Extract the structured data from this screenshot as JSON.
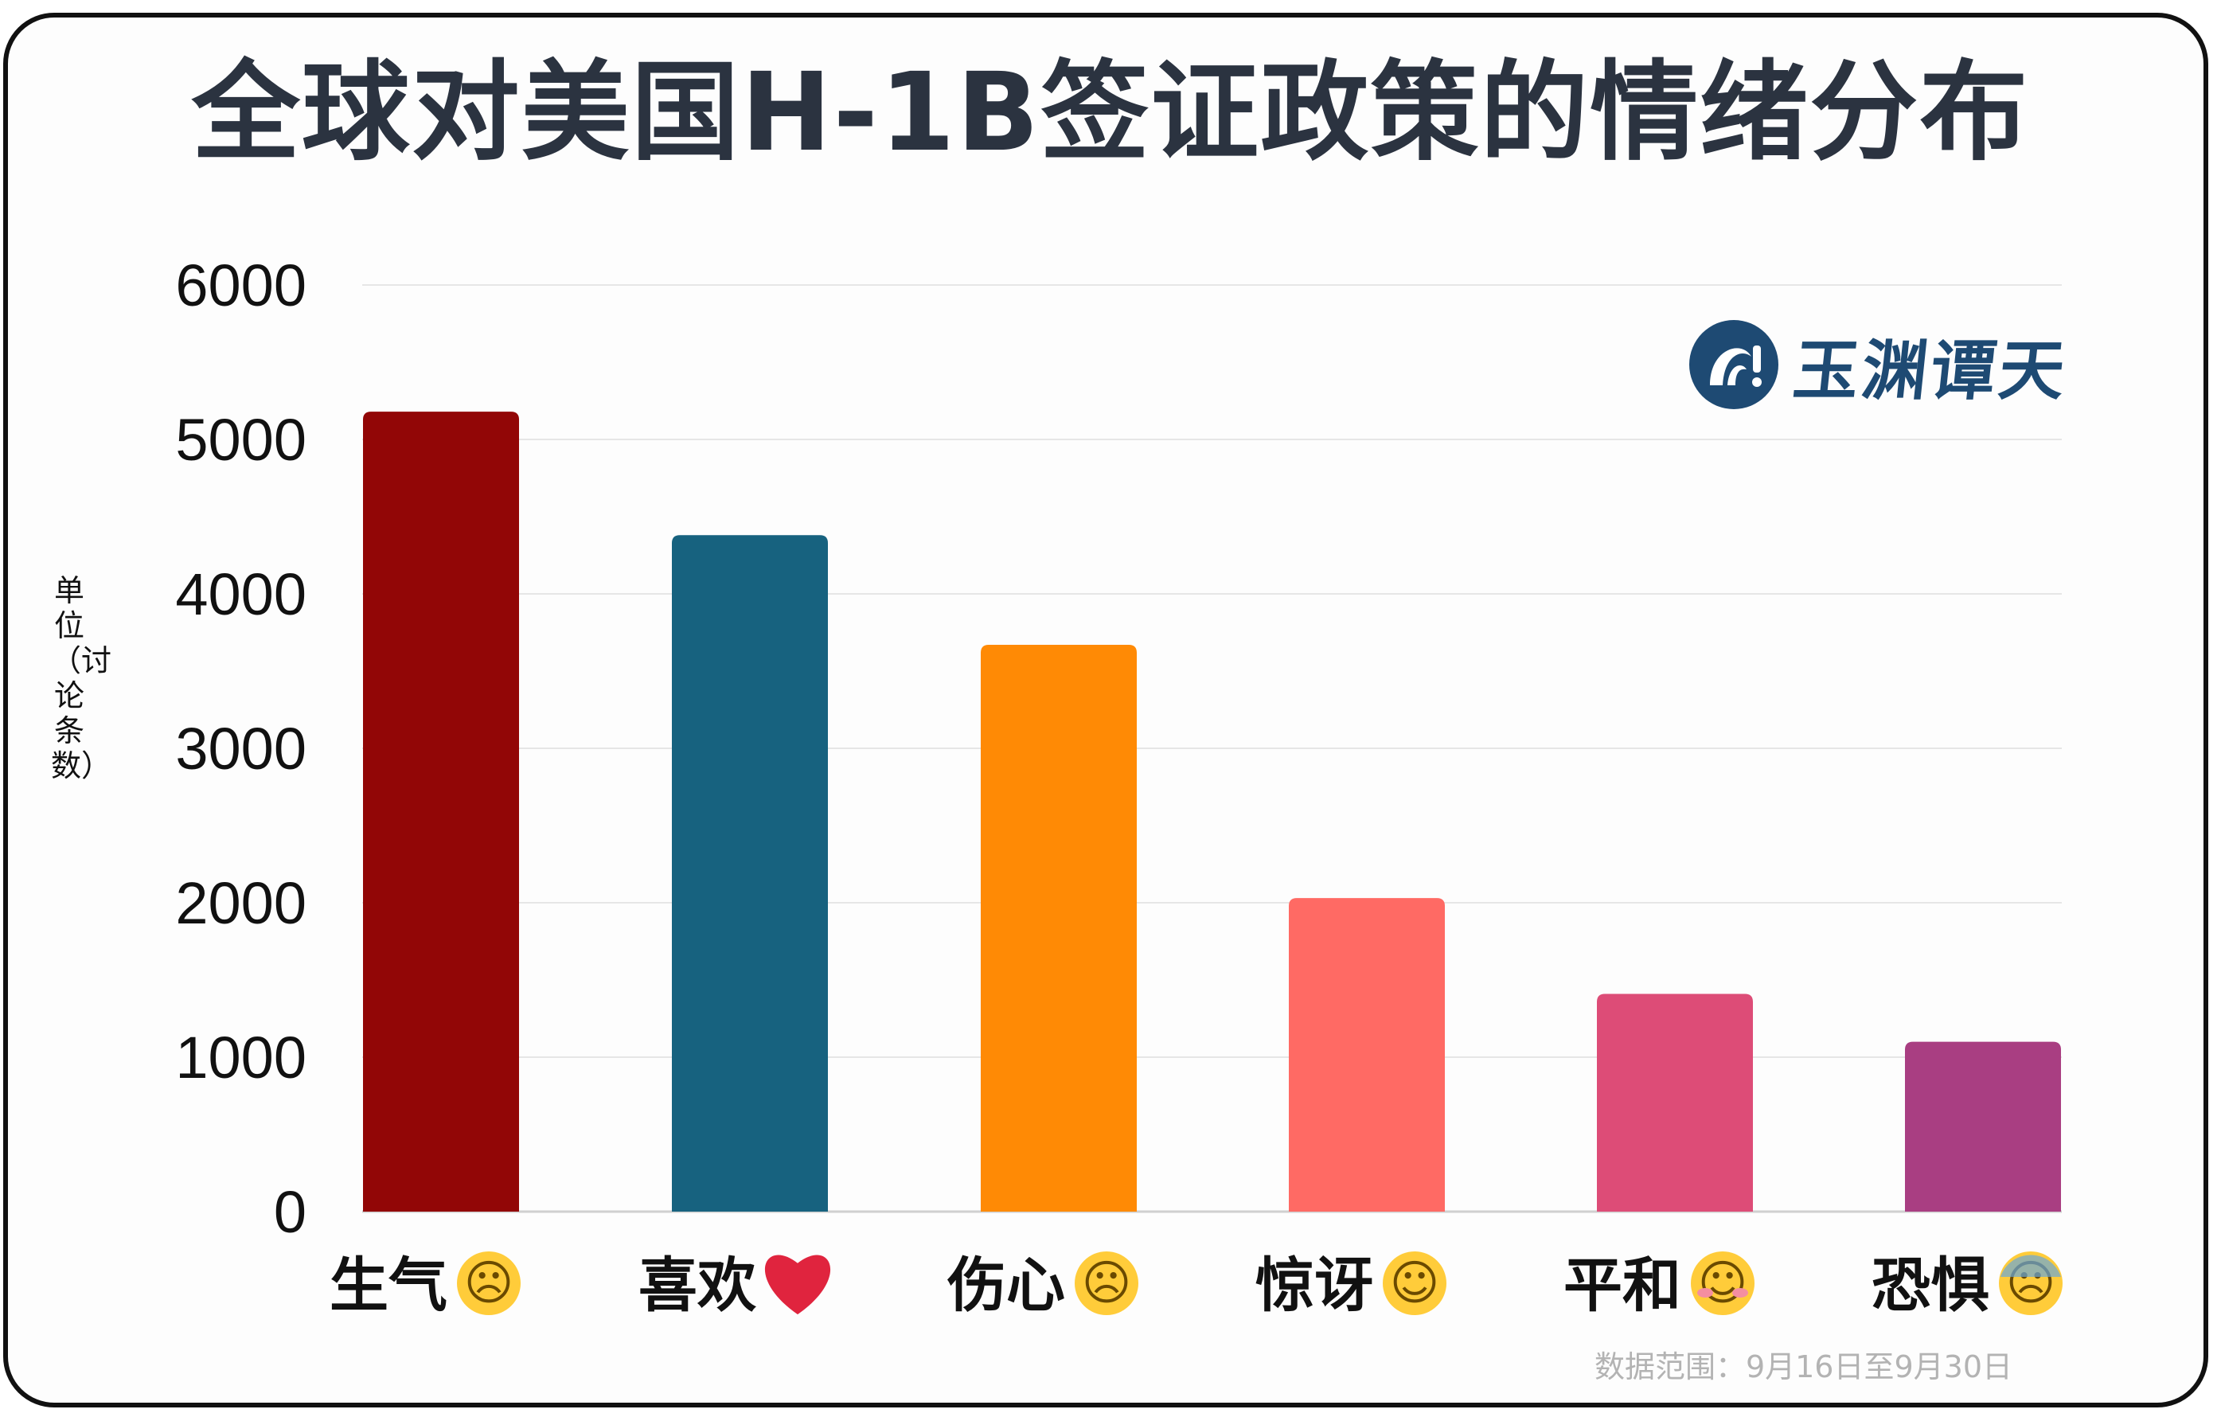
{
  "chart_data": {
    "type": "bar",
    "title": "全球对美国H-1B签证政策的情绪分布",
    "ylabel": "单位（讨论条数）",
    "categories": [
      "生气",
      "喜欢",
      "伤心",
      "惊讶",
      "平和",
      "恐惧"
    ],
    "emojis": [
      "angry-face-emoji",
      "red-heart-emoji",
      "disappointed-face-emoji",
      "astonished-face-emoji",
      "smiling-face-emoji",
      "anxious-sweat-face-emoji"
    ],
    "values": [
      5180,
      4380,
      3670,
      2030,
      1410,
      1100
    ],
    "colors": [
      "#920606",
      "#17627f",
      "#ff8a05",
      "#ff6a64",
      "#dd4c77",
      "#a93e82"
    ],
    "ylim": [
      0,
      6000
    ],
    "yticks": [
      0,
      1000,
      2000,
      3000,
      4000,
      5000,
      6000
    ],
    "grid": true,
    "legend": "none"
  },
  "logo": {
    "text": "玉渊谭天",
    "icon": "yuyuan-tantian-logo-icon"
  },
  "footnote": "数据范围：9月16日至9月30日"
}
